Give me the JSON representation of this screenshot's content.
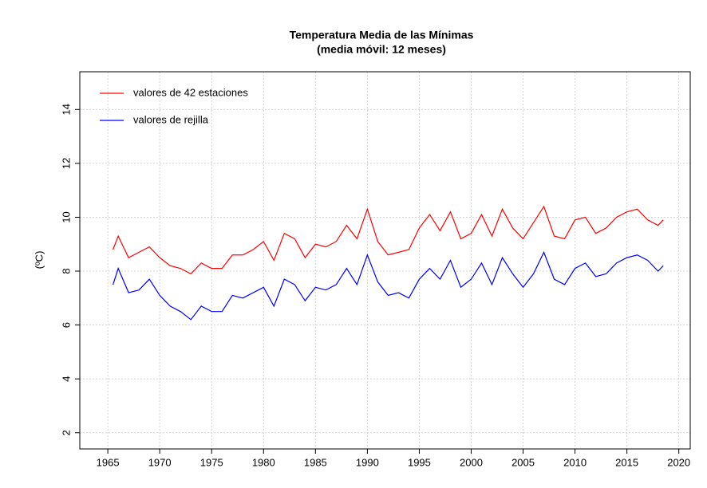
{
  "chart_data": {
    "type": "line",
    "title": "Temperatura Media de las Mínimas",
    "subtitle": "(media móvil: 12 meses)",
    "ylabel": "(ºC)",
    "x": [
      1965.5,
      1966,
      1967,
      1968,
      1969,
      1970,
      1971,
      1972,
      1973,
      1974,
      1975,
      1976,
      1977,
      1978,
      1979,
      1980,
      1981,
      1982,
      1983,
      1984,
      1985,
      1986,
      1987,
      1988,
      1989,
      1990,
      1991,
      1992,
      1993,
      1994,
      1995,
      1996,
      1997,
      1998,
      1999,
      2000,
      2001,
      2002,
      2003,
      2004,
      2005,
      2006,
      2007,
      2008,
      2009,
      2010,
      2011,
      2012,
      2013,
      2014,
      2015,
      2016,
      2017,
      2018,
      2018.5
    ],
    "series": [
      {
        "name": "valores de 42 estaciones",
        "color": "#ff0000",
        "values": [
          8.8,
          9.3,
          8.5,
          8.7,
          8.9,
          8.5,
          8.2,
          8.1,
          7.9,
          8.3,
          8.1,
          8.1,
          8.6,
          8.6,
          8.8,
          9.1,
          8.4,
          9.4,
          9.2,
          8.5,
          9.0,
          8.9,
          9.1,
          9.7,
          9.2,
          10.3,
          9.1,
          8.6,
          8.7,
          8.8,
          9.6,
          10.1,
          9.5,
          10.2,
          9.2,
          9.4,
          10.1,
          9.3,
          10.3,
          9.6,
          9.2,
          9.8,
          10.4,
          9.3,
          9.2,
          9.9,
          10.0,
          9.4,
          9.6,
          10.0,
          10.2,
          10.3,
          9.9,
          9.7,
          9.9
        ]
      },
      {
        "name": "valores de rejilla",
        "color": "#0000ff",
        "values": [
          7.5,
          8.1,
          7.2,
          7.3,
          7.7,
          7.1,
          6.7,
          6.5,
          6.2,
          6.7,
          6.5,
          6.5,
          7.1,
          7.0,
          7.2,
          7.4,
          6.7,
          7.7,
          7.5,
          6.9,
          7.4,
          7.3,
          7.5,
          8.1,
          7.5,
          8.6,
          7.6,
          7.1,
          7.2,
          7.0,
          7.7,
          8.1,
          7.7,
          8.4,
          7.4,
          7.7,
          8.3,
          7.5,
          8.5,
          7.9,
          7.4,
          7.9,
          8.7,
          7.7,
          7.5,
          8.1,
          8.3,
          7.8,
          7.9,
          8.3,
          8.5,
          8.6,
          8.4,
          8.0,
          8.2
        ]
      }
    ],
    "xlim": [
      1962.3,
      2021.1
    ],
    "xticks": [
      1965,
      1970,
      1975,
      1980,
      1985,
      1990,
      1995,
      2000,
      2005,
      2010,
      2015,
      2020
    ],
    "ylim": [
      1.4,
      15.4
    ],
    "yticks": [
      2,
      4,
      6,
      8,
      10,
      12,
      14
    ],
    "grid": true,
    "legend": "topleft"
  }
}
